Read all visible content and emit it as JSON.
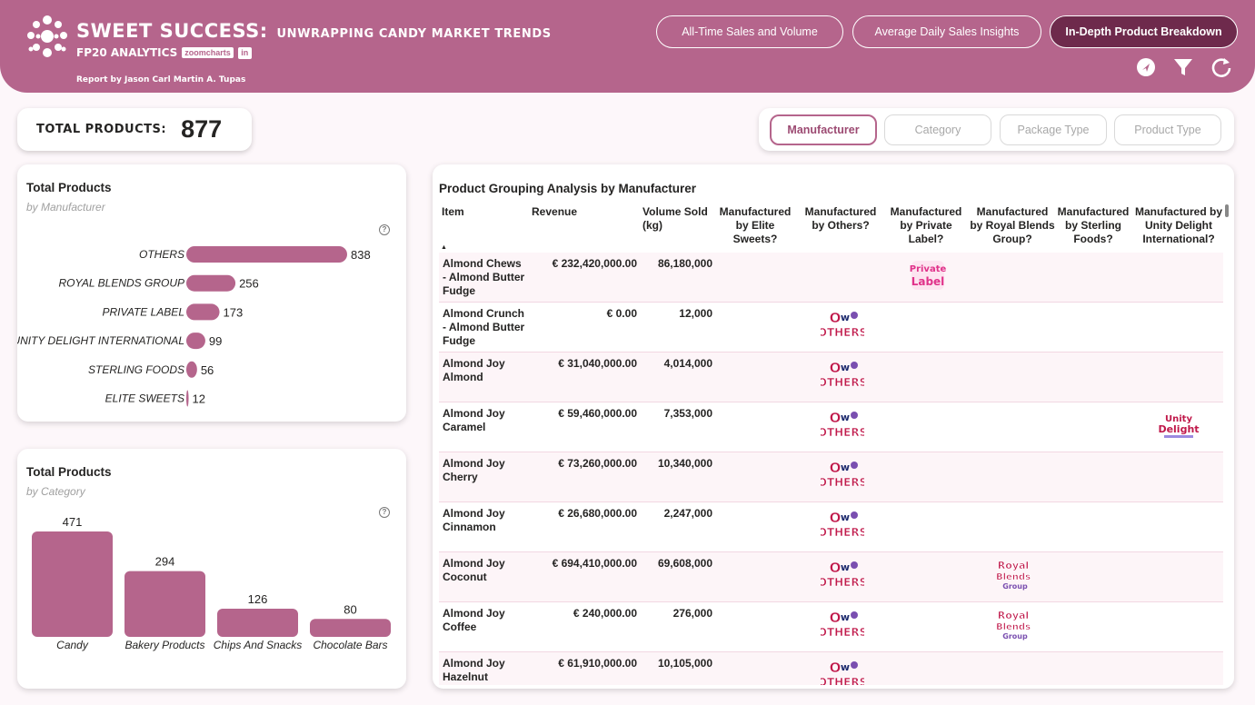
{
  "header": {
    "title": "SWEET SUCCESS:",
    "subtitle": "UNWRAPPING CANDY MARKET TRENDS",
    "brand": "FP20 ANALYTICS",
    "zoomcharts_badge": "zoomcharts",
    "linkedin_badge": "in",
    "report_by": "Report by Jason Carl Martin A. Tupas",
    "nav": [
      {
        "label": "All-Time Sales and Volume",
        "active": false
      },
      {
        "label": "Average Daily Sales Insights",
        "active": false
      },
      {
        "label": "In-Depth Product Breakdown",
        "active": true
      }
    ],
    "icons": [
      "navigate-icon",
      "filter-icon",
      "reset-icon"
    ]
  },
  "kpi": {
    "label": "TOTAL PRODUCTS:",
    "value": "877"
  },
  "slicer": {
    "buttons": [
      {
        "label": "Manufacturer",
        "active": true
      },
      {
        "label": "Category",
        "active": false
      },
      {
        "label": "Package Type",
        "active": false
      },
      {
        "label": "Product Type",
        "active": false
      }
    ]
  },
  "manufacturer_card": {
    "title": "Total Products",
    "subtitle": "by Manufacturer",
    "help": "?"
  },
  "category_card": {
    "title": "Total Products",
    "subtitle": "by Category",
    "help": "?"
  },
  "chart_data": [
    {
      "type": "bar",
      "orientation": "horizontal",
      "title": "Total Products",
      "subtitle": "by Manufacturer",
      "categories": [
        "OTHERS",
        "ROYAL BLENDS GROUP",
        "PRIVATE LABEL",
        "UNITY DELIGHT INTERNATIONAL",
        "STERLING FOODS",
        "ELITE SWEETS"
      ],
      "values": [
        838,
        256,
        173,
        99,
        56,
        12
      ],
      "color": "#b5658c"
    },
    {
      "type": "bar",
      "orientation": "vertical",
      "title": "Total Products",
      "subtitle": "by Category",
      "categories": [
        "Candy",
        "Bakery Products",
        "Chips And Snacks",
        "Chocolate Bars"
      ],
      "values": [
        471,
        294,
        126,
        80
      ],
      "color": "#b5658c"
    }
  ],
  "table": {
    "title": "Product Grouping Analysis by Manufacturer",
    "columns": [
      "Item",
      "Revenue",
      "Volume Sold (kg)",
      "Manufactured by Elite Sweets?",
      "Manufactured by Others?",
      "Manufactured by Private Label?",
      "Manufactured by Royal Blends Group?",
      "Manufactured by Sterling Foods?",
      "Manufactured by Unity Delight International?"
    ],
    "sort_indicator": "▲",
    "logo_labels": {
      "others": [
        "O",
        "w",
        "OTHERS"
      ],
      "private": [
        "Private",
        "Label"
      ],
      "royal": [
        "Royal",
        "Blends",
        "Group"
      ],
      "unity": [
        "Unity",
        "Delight"
      ]
    },
    "rows": [
      {
        "item": "Almond Chews - Almond Butter Fudge",
        "revenue": "€ 232,420,000.00",
        "volume": "86,180,000",
        "logos": [
          "private"
        ]
      },
      {
        "item": "Almond Crunch - Almond Butter Fudge",
        "revenue": "€ 0.00",
        "volume": "12,000",
        "logos": [
          "others"
        ]
      },
      {
        "item": "Almond Joy Almond",
        "revenue": "€ 31,040,000.00",
        "volume": "4,014,000",
        "logos": [
          "others"
        ]
      },
      {
        "item": "Almond Joy Caramel",
        "revenue": "€ 59,460,000.00",
        "volume": "7,353,000",
        "logos": [
          "others",
          "unity"
        ]
      },
      {
        "item": "Almond Joy Cherry",
        "revenue": "€ 73,260,000.00",
        "volume": "10,340,000",
        "logos": [
          "others"
        ]
      },
      {
        "item": "Almond Joy Cinnamon",
        "revenue": "€ 26,680,000.00",
        "volume": "2,247,000",
        "logos": [
          "others"
        ]
      },
      {
        "item": "Almond Joy Coconut",
        "revenue": "€ 694,410,000.00",
        "volume": "69,608,000",
        "logos": [
          "others",
          "royal"
        ]
      },
      {
        "item": "Almond Joy Coffee",
        "revenue": "€ 240,000.00",
        "volume": "276,000",
        "logos": [
          "others",
          "royal"
        ]
      },
      {
        "item": "Almond Joy Hazelnut",
        "revenue": "€ 61,910,000.00",
        "volume": "10,105,000",
        "logos": [
          "others"
        ]
      }
    ]
  }
}
